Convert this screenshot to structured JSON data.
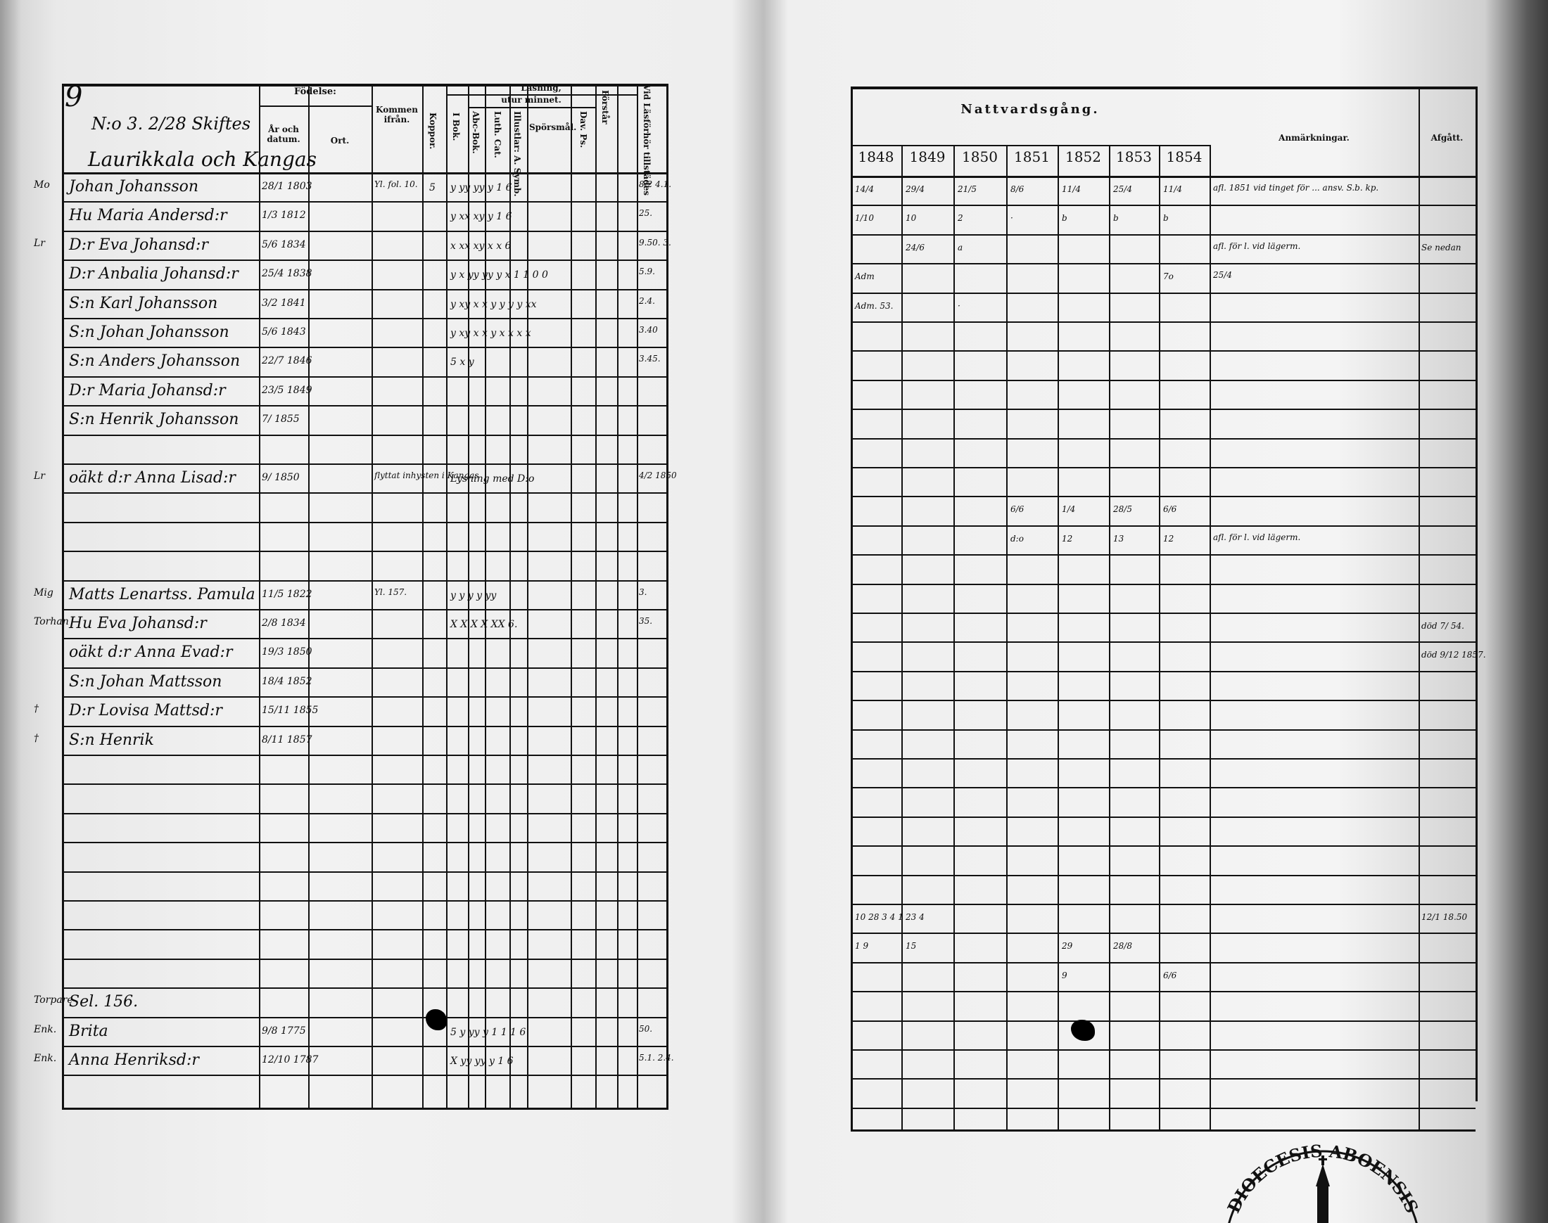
{
  "left_page": {
    "page_number": "9",
    "household_header": "N:o 3. 2/28 Skiftes",
    "village": "Laurikkala och Kangas",
    "headers": {
      "fodelse": "Födelse:",
      "ar_och_datum": "År och datum.",
      "ort": "Ort.",
      "kommen_ifran": "Kommen ifrån.",
      "koppor": "Koppor.",
      "lasning": "Läsning,",
      "utur_minnet": "utur minnet.",
      "i_bok": "I Bok.",
      "abc_bok": "Abc-Bok.",
      "luth_cat": "Luth. Cat.",
      "illustrationer": "Illustlar: A. Symb.",
      "sporsmal": "Spörsmål.",
      "dav_ps": "Dav. Ps.",
      "forstar": "Förstår",
      "vid_lasforhor": "Vid Läsförhör tillstädes"
    },
    "rows": [
      {
        "margin": "Mo",
        "name": "Johan Johansson",
        "birth": "28/1 1803",
        "from": "Yl. fol. 10.",
        "koppor": "5",
        "reading": "y  yy yy y 1 6",
        "vid": "8/2 4.1."
      },
      {
        "margin": "",
        "name": "Hu Maria Andersd:r",
        "birth": "1/3 1812",
        "from": "",
        "koppor": "",
        "reading": "y  xx xy y 1 6",
        "vid": "25."
      },
      {
        "margin": "Lr",
        "name": "D:r Eva Johansd:r",
        "birth": "5/6 1834",
        "from": "",
        "koppor": "",
        "reading": "x  xx xy x x 6",
        "vid": "9.50. 3."
      },
      {
        "margin": "",
        "name": "D:r Anbalia Johansd:r",
        "birth": "25/4 1838",
        "from": "",
        "koppor": "",
        "reading": "y x yy yy y x 1 1 0 0",
        "vid": "5.9."
      },
      {
        "margin": "",
        "name": "S:n Karl Johansson",
        "birth": "3/2 1841",
        "from": "",
        "koppor": "",
        "reading": "y xy x x y y y y xx",
        "vid": "2.4."
      },
      {
        "margin": "",
        "name": "S:n Johan Johansson",
        "birth": "5/6 1843",
        "from": "",
        "koppor": "",
        "reading": "y xy x x y x x x x",
        "vid": "3.40"
      },
      {
        "margin": "",
        "name": "S:n Anders Johansson",
        "birth": "22/7 1846",
        "from": "",
        "koppor": "",
        "reading": "5 x  y",
        "vid": "3.45."
      },
      {
        "margin": "",
        "name": "D:r Maria Johansd:r",
        "birth": "23/5 1849",
        "from": "",
        "koppor": "",
        "reading": "",
        "vid": ""
      },
      {
        "margin": "",
        "name": "S:n Henrik Johansson",
        "birth": "7/ 1855",
        "from": "",
        "koppor": "",
        "reading": "",
        "vid": ""
      },
      {
        "margin": "Lr",
        "name": "oäkt d:r Anna Lisad:r",
        "birth": "9/ 1850",
        "from": "flyttat inhysten i Kangas",
        "koppor": "",
        "reading": "Lysning med D:o",
        "vid": "4/2 1850"
      },
      {
        "margin": "Mig",
        "name": "Matts Lenartss. Pamula",
        "birth": "11/5 1822",
        "from": "Yl. 157.",
        "koppor": "",
        "reading": "y y y y yy",
        "vid": "3."
      },
      {
        "margin": "Torhan",
        "name": "Hu Eva Johansd:r",
        "birth": "2/8 1834",
        "from": "",
        "koppor": "",
        "reading": "X X X X XX 6.",
        "vid": "35."
      },
      {
        "margin": "",
        "name": "oäkt d:r Anna Evad:r",
        "birth": "19/3 1850",
        "from": "",
        "koppor": "",
        "reading": "",
        "vid": ""
      },
      {
        "margin": "",
        "name": "S:n Johan Mattsson",
        "birth": "18/4 1852",
        "from": "",
        "koppor": "",
        "reading": "",
        "vid": ""
      },
      {
        "margin": "†",
        "name": "D:r Lovisa Mattsd:r",
        "birth": "15/11 1855",
        "from": "",
        "koppor": "",
        "reading": "",
        "vid": ""
      },
      {
        "margin": "†",
        "name": "S:n Henrik",
        "birth": "8/11 1857",
        "from": "",
        "koppor": "",
        "reading": "",
        "vid": ""
      },
      {
        "margin": "Torpare",
        "name": "Sel. 156.",
        "birth": "",
        "from": "",
        "koppor": "",
        "reading": "",
        "vid": ""
      },
      {
        "margin": "Enk.",
        "name": "Brita",
        "birth": "9/8 1775",
        "from": "",
        "koppor": "",
        "reading": "5 y yy y 1 1 1 6",
        "vid": "50."
      },
      {
        "margin": "Enk.",
        "name": "Anna Henriksd:r",
        "birth": "12/10 1787",
        "from": "",
        "koppor": "",
        "reading": "X yy yy y 1 6",
        "vid": "5.1. 2.4."
      }
    ]
  },
  "right_page": {
    "nattvardsgang": "Nattvardsgång.",
    "years": [
      "1848",
      "1849",
      "1850",
      "1851",
      "1852",
      "1853",
      "1854"
    ],
    "anmarkningar": "Anmärkningar.",
    "afgatt": "Afgått.",
    "rows": [
      {
        "cells": [
          "14/4",
          "29/4",
          "21/5",
          "8/6",
          "11/4",
          "25/4",
          "11/4"
        ],
        "remark": "afl. 1851 vid tinget för ... ansv. S.b. kp.",
        "afgatt": ""
      },
      {
        "cells": [
          "1/10",
          "10",
          "2",
          "·",
          "b",
          "b",
          "b"
        ],
        "remark": "",
        "afgatt": ""
      },
      {
        "cells": [
          "",
          "24/6",
          "a",
          "",
          "",
          "",
          ""
        ],
        "remark": "afl. för l. vid lägerm.",
        "afgatt": "Se nedan"
      },
      {
        "cells": [
          "Adm",
          "",
          "",
          "",
          "",
          "",
          "7o"
        ],
        "remark": "25/4",
        "afgatt": ""
      },
      {
        "cells": [
          "Adm. 53.",
          "",
          "·",
          "",
          "",
          "",
          ""
        ],
        "remark": "",
        "afgatt": ""
      },
      {
        "cells": [
          "",
          "",
          "",
          "6/6",
          "1/4",
          "28/5",
          "6/6"
        ],
        "remark": "",
        "afgatt": ""
      },
      {
        "cells": [
          "",
          "",
          "",
          "d:o",
          "12",
          "13",
          "12"
        ],
        "remark": "afl. för l. vid lägerm.",
        "afgatt": ""
      },
      {
        "cells": [
          "",
          "",
          "",
          "",
          "",
          "",
          ""
        ],
        "remark": "",
        "afgatt": "död 7/ 54."
      },
      {
        "cells": [
          "",
          "",
          "",
          "",
          "",
          "",
          ""
        ],
        "remark": "",
        "afgatt": "död 9/12 1857."
      },
      {
        "cells": [
          "10 28 3 4 1",
          "23 4",
          "",
          "",
          "",
          "",
          ""
        ],
        "remark": "",
        "afgatt": "12/1 18.50"
      },
      {
        "cells": [
          "1 9",
          "15",
          "",
          "",
          "29",
          "28/8",
          ""
        ],
        "remark": "",
        "afgatt": ""
      },
      {
        "cells": [
          "",
          "",
          "",
          "",
          "9",
          "",
          "6/6"
        ],
        "remark": "",
        "afgatt": ""
      }
    ],
    "stamp_text": "DIOECESIS ABOENSIS"
  }
}
